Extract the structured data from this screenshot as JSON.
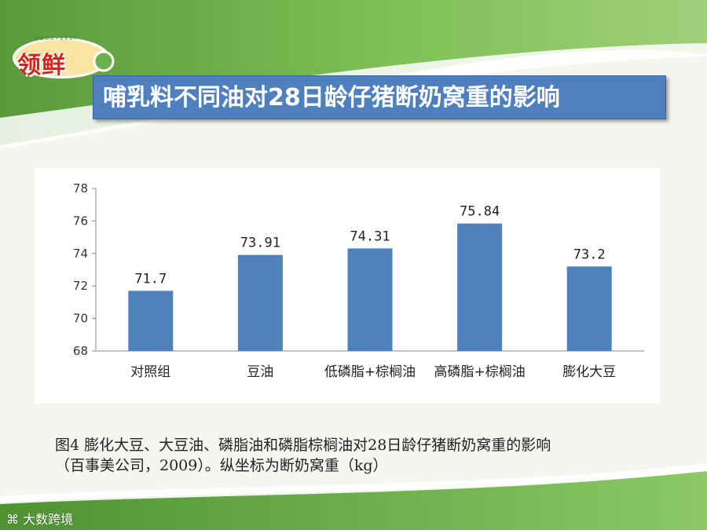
{
  "slide": {
    "logo_text": "领鲜",
    "title": "哺乳料不同油对28日龄仔猪断奶窝重的影响",
    "caption_line1": "图4  膨化大豆、大豆油、磷脂油和磷脂棕榈油对28日龄仔猪断奶窝重的影响",
    "caption_line2": "（百事美公司，2009）。纵坐标为断奶窝重（kg）",
    "watermark": "大数跨境"
  },
  "colors": {
    "bar": "#4f81bd",
    "title_bg": "#4f7fbf",
    "green_band": "#6aa84f"
  },
  "chart_data": {
    "type": "bar",
    "categories": [
      "对照组",
      "豆油",
      "低磷脂+棕榈油",
      "高磷脂+棕榈油",
      "膨化大豆"
    ],
    "values": [
      71.7,
      73.91,
      74.31,
      75.84,
      73.2
    ],
    "value_labels": [
      "71.7",
      "73.91",
      "74.31",
      "75.84",
      "73.2"
    ],
    "ylim": [
      68,
      78
    ],
    "yticks": [
      68,
      70,
      72,
      74,
      76,
      78
    ],
    "title": "",
    "xlabel": "",
    "ylabel": "",
    "grid": false,
    "legend": "none"
  }
}
